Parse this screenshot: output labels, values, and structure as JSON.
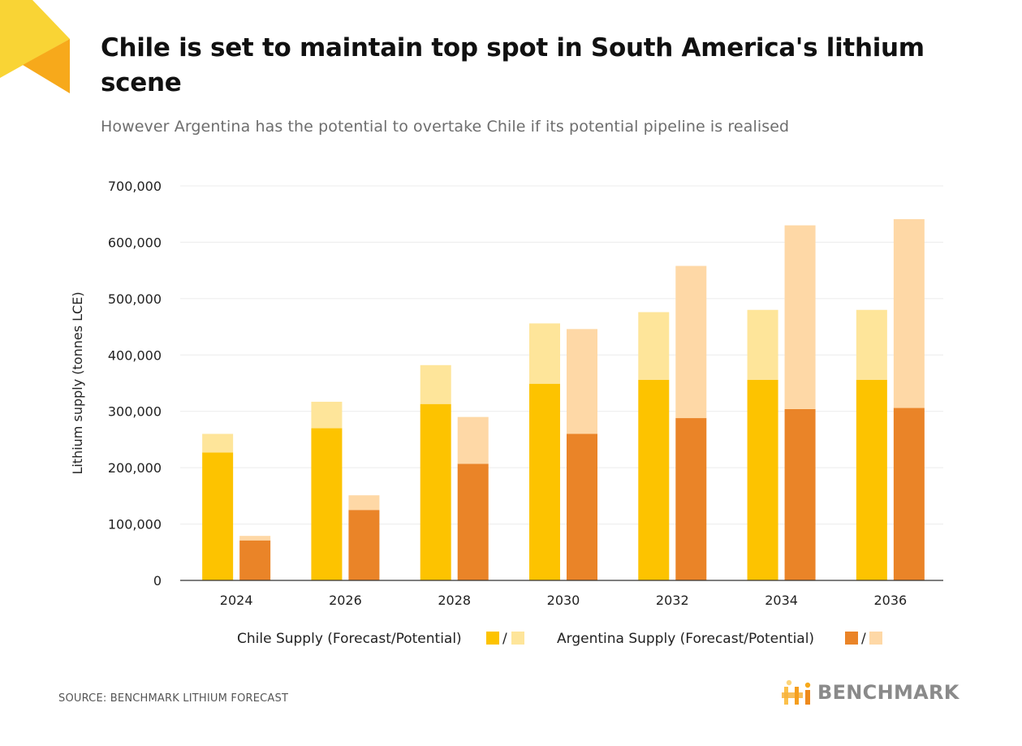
{
  "title": "Chile is set to maintain top spot in South America's lithium scene",
  "subtitle": "However Argentina has the potential to overtake Chile if its potential pipeline is realised",
  "source": "SOURCE: BENCHMARK LITHIUM FORECAST",
  "brand": {
    "name": "BENCHMARK",
    "icon": "benchmark-logo-icon"
  },
  "legend": {
    "chile_label": "Chile Supply (Forecast/Potential)",
    "argentina_label": "Argentina Supply (Forecast/Potential)",
    "separator": "/"
  },
  "colors": {
    "chile_forecast": "#FDC300",
    "chile_potential": "#FEE59A",
    "argentina_forecast": "#EA8428",
    "argentina_potential": "#FED8A6",
    "corner_light": "#F9D435",
    "corner_dark": "#F7A91B"
  },
  "chart_data": {
    "type": "bar",
    "stacked": true,
    "categories": [
      "2024",
      "2026",
      "2028",
      "2030",
      "2032",
      "2034",
      "2036"
    ],
    "ylabel": "Lithium supply (tonnes LCE)",
    "xlabel": "",
    "ylim": [
      0,
      700000
    ],
    "yticks": [
      0,
      100000,
      200000,
      300000,
      400000,
      500000,
      600000,
      700000
    ],
    "ytick_labels": [
      "0",
      "100,000",
      "200,000",
      "300,000",
      "400,000",
      "500,000",
      "600,000",
      "700,000"
    ],
    "grid": true,
    "legend_position": "bottom",
    "series": [
      {
        "name": "Chile Supply (Forecast)",
        "group": "chile",
        "color": "#FDC300",
        "values": [
          227000,
          270000,
          313000,
          349000,
          356000,
          356000,
          356000
        ]
      },
      {
        "name": "Chile Supply (Potential)",
        "group": "chile",
        "color": "#FEE59A",
        "values": [
          33000,
          47000,
          69000,
          107000,
          120000,
          124000,
          124000
        ]
      },
      {
        "name": "Argentina Supply (Forecast)",
        "group": "argentina",
        "color": "#EA8428",
        "values": [
          71000,
          125000,
          207000,
          260000,
          288000,
          304000,
          306000
        ]
      },
      {
        "name": "Argentina Supply (Potential)",
        "group": "argentina",
        "color": "#FED8A6",
        "values": [
          8000,
          26000,
          83000,
          186000,
          270000,
          326000,
          335000
        ]
      }
    ]
  }
}
